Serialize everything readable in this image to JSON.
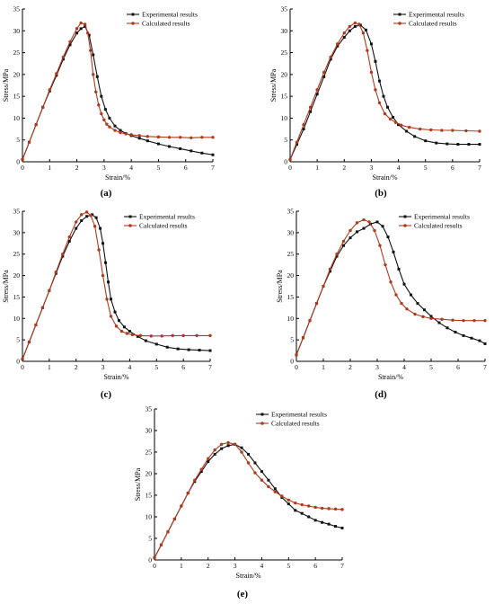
{
  "colors": {
    "experimental": "#111111",
    "calculated": "#b03a1e"
  },
  "chart_data": [
    {
      "type": "line",
      "panel": "(a)",
      "xlabel": "Strain/%",
      "ylabel": "Stress/MPa",
      "xlim": [
        0,
        7
      ],
      "ylim": [
        0,
        35
      ],
      "xticks": [
        0,
        1,
        2,
        3,
        4,
        5,
        6,
        7
      ],
      "yticks": [
        0,
        5,
        10,
        15,
        20,
        25,
        30,
        35
      ],
      "legend": "top-right",
      "series": [
        {
          "name": "Experimental  results",
          "x": [
            0,
            0.25,
            0.5,
            0.75,
            1.0,
            1.25,
            1.5,
            1.75,
            2.0,
            2.15,
            2.3,
            2.45,
            2.6,
            2.75,
            2.9,
            3.05,
            3.2,
            3.4,
            3.6,
            3.8,
            4.0,
            4.3,
            4.6,
            5.0,
            5.4,
            5.8,
            6.2,
            6.6,
            7.0
          ],
          "y": [
            0.5,
            4.5,
            8.5,
            12.5,
            16.2,
            19.8,
            23.5,
            26.8,
            29.5,
            30.5,
            31.0,
            29.0,
            24.5,
            19.5,
            15.0,
            12.0,
            10.0,
            8.2,
            7.2,
            6.5,
            6.0,
            5.4,
            4.8,
            4.1,
            3.5,
            3.0,
            2.5,
            2.0,
            1.6
          ]
        },
        {
          "name": "Calculated results",
          "x": [
            0,
            0.25,
            0.5,
            0.75,
            1.0,
            1.25,
            1.5,
            1.75,
            2.0,
            2.15,
            2.3,
            2.4,
            2.5,
            2.6,
            2.7,
            2.8,
            2.9,
            3.0,
            3.1,
            3.2,
            3.4,
            3.6,
            3.8,
            4.0,
            4.3,
            4.6,
            5.0,
            5.4,
            5.8,
            6.2,
            6.6,
            7.0
          ],
          "y": [
            0.5,
            4.5,
            8.5,
            12.5,
            16.5,
            20.2,
            24.0,
            27.5,
            30.5,
            31.8,
            31.5,
            29.5,
            25.5,
            20.0,
            16.0,
            13.0,
            11.0,
            9.6,
            8.6,
            8.0,
            7.2,
            6.7,
            6.4,
            6.2,
            6.0,
            5.8,
            5.7,
            5.6,
            5.6,
            5.5,
            5.6,
            5.6
          ]
        }
      ]
    },
    {
      "type": "line",
      "panel": "(b)",
      "xlabel": "Strain/%",
      "ylabel": "Stress/MPa",
      "xlim": [
        0,
        7
      ],
      "ylim": [
        0,
        35
      ],
      "xticks": [
        0,
        1,
        2,
        3,
        4,
        5,
        6,
        7
      ],
      "yticks": [
        0,
        5,
        10,
        15,
        20,
        25,
        30,
        35
      ],
      "legend": "top-right",
      "series": [
        {
          "name": "Experimental  results",
          "x": [
            0,
            0.25,
            0.5,
            0.75,
            1.0,
            1.25,
            1.5,
            1.75,
            2.0,
            2.2,
            2.4,
            2.6,
            2.8,
            3.0,
            3.15,
            3.3,
            3.45,
            3.6,
            3.8,
            4.0,
            4.3,
            4.6,
            5.0,
            5.4,
            5.8,
            6.2,
            6.6,
            7.0
          ],
          "y": [
            0.5,
            4.0,
            7.5,
            11.5,
            15.5,
            19.5,
            23.5,
            26.5,
            28.5,
            30.0,
            31.0,
            31.3,
            30.2,
            27.0,
            23.0,
            18.5,
            15.0,
            12.5,
            10.2,
            8.5,
            7.0,
            5.8,
            4.8,
            4.3,
            4.1,
            4.0,
            4.0,
            4.0
          ]
        },
        {
          "name": "Calculated results",
          "x": [
            0,
            0.25,
            0.5,
            0.75,
            1.0,
            1.25,
            1.5,
            1.75,
            2.0,
            2.2,
            2.4,
            2.55,
            2.7,
            2.85,
            3.0,
            3.15,
            3.3,
            3.5,
            3.7,
            3.9,
            4.1,
            4.4,
            4.8,
            5.2,
            5.6,
            6.0,
            6.5,
            7.0
          ],
          "y": [
            0.5,
            4.5,
            8.5,
            12.5,
            16.5,
            20.5,
            24.0,
            27.0,
            29.5,
            31.0,
            31.8,
            31.5,
            29.5,
            25.5,
            20.5,
            16.5,
            13.5,
            11.0,
            9.8,
            9.0,
            8.4,
            7.9,
            7.5,
            7.3,
            7.2,
            7.2,
            7.1,
            7.0
          ]
        }
      ]
    },
    {
      "type": "line",
      "panel": "(c)",
      "xlabel": "Strain/%",
      "ylabel": "Stress/MPa",
      "xlim": [
        0,
        7
      ],
      "ylim": [
        0,
        35
      ],
      "xticks": [
        0,
        1,
        2,
        3,
        4,
        5,
        6,
        7
      ],
      "yticks": [
        0,
        5,
        10,
        15,
        20,
        25,
        30,
        35
      ],
      "legend": "top-right",
      "series": [
        {
          "name": "Experimental  results",
          "x": [
            0,
            0.25,
            0.5,
            0.75,
            1.0,
            1.25,
            1.5,
            1.75,
            2.0,
            2.2,
            2.4,
            2.6,
            2.75,
            2.9,
            3.0,
            3.1,
            3.2,
            3.3,
            3.45,
            3.6,
            3.8,
            4.0,
            4.3,
            4.6,
            5.0,
            5.4,
            5.8,
            6.2,
            6.6,
            7.0
          ],
          "y": [
            0.5,
            4.5,
            8.5,
            12.5,
            16.5,
            20.5,
            24.5,
            28.0,
            31.0,
            32.8,
            33.8,
            34.2,
            33.5,
            31.0,
            27.5,
            23.0,
            18.5,
            14.5,
            11.5,
            9.5,
            8.0,
            7.0,
            5.8,
            4.8,
            4.0,
            3.3,
            2.9,
            2.7,
            2.6,
            2.5
          ]
        },
        {
          "name": "Calculated results",
          "x": [
            0,
            0.25,
            0.5,
            0.75,
            1.0,
            1.25,
            1.5,
            1.75,
            2.0,
            2.2,
            2.4,
            2.55,
            2.7,
            2.85,
            3.0,
            3.15,
            3.3,
            3.5,
            3.7,
            3.9,
            4.1,
            4.4,
            4.8,
            5.2,
            5.6,
            6.0,
            6.5,
            7.0
          ],
          "y": [
            0.5,
            4.5,
            8.5,
            12.5,
            16.5,
            20.8,
            25.0,
            29.0,
            32.5,
            34.2,
            34.8,
            34.0,
            31.5,
            26.0,
            20.0,
            14.5,
            10.5,
            8.2,
            7.0,
            6.5,
            6.2,
            6.0,
            5.9,
            5.9,
            6.0,
            6.0,
            6.0,
            6.0
          ]
        }
      ]
    },
    {
      "type": "line",
      "panel": "(d)",
      "xlabel": "Strain/%",
      "ylabel": "Stress/MPa",
      "xlim": [
        0,
        7
      ],
      "ylim": [
        0,
        35
      ],
      "xticks": [
        0,
        1,
        2,
        3,
        4,
        5,
        6,
        7
      ],
      "yticks": [
        0,
        5,
        10,
        15,
        20,
        25,
        30,
        35
      ],
      "legend": "top-right",
      "series": [
        {
          "name": "Experimental  results",
          "x": [
            0,
            0.25,
            0.5,
            0.75,
            1.0,
            1.25,
            1.5,
            1.75,
            2.0,
            2.25,
            2.5,
            2.75,
            3.0,
            3.2,
            3.4,
            3.6,
            3.8,
            4.0,
            4.25,
            4.5,
            4.75,
            5.0,
            5.3,
            5.6,
            5.9,
            6.2,
            6.5,
            6.8,
            7.0
          ],
          "y": [
            1.5,
            5.5,
            9.5,
            13.5,
            17.5,
            21.0,
            24.5,
            27.0,
            28.8,
            30.2,
            31.0,
            32.0,
            32.5,
            31.5,
            29.0,
            25.5,
            21.5,
            18.0,
            15.5,
            13.5,
            12.0,
            10.5,
            9.0,
            7.8,
            6.8,
            6.0,
            5.4,
            4.8,
            4.1
          ]
        },
        {
          "name": "Calculated results",
          "x": [
            0,
            0.25,
            0.5,
            0.75,
            1.0,
            1.25,
            1.5,
            1.75,
            2.0,
            2.25,
            2.5,
            2.7,
            2.9,
            3.1,
            3.3,
            3.5,
            3.7,
            3.9,
            4.1,
            4.4,
            4.7,
            5.0,
            5.4,
            5.8,
            6.2,
            6.6,
            7.0
          ],
          "y": [
            1.5,
            5.5,
            9.5,
            13.5,
            17.5,
            21.5,
            25.0,
            28.0,
            30.5,
            32.3,
            33.0,
            32.5,
            30.5,
            27.0,
            22.5,
            18.5,
            15.5,
            13.5,
            12.2,
            11.0,
            10.4,
            10.0,
            9.8,
            9.6,
            9.5,
            9.5,
            9.5
          ]
        }
      ]
    },
    {
      "type": "line",
      "panel": "(e)",
      "xlabel": "Strain/%",
      "ylabel": "Stress/MPa",
      "xlim": [
        0,
        7
      ],
      "ylim": [
        0,
        35
      ],
      "xticks": [
        0,
        1,
        2,
        3,
        4,
        5,
        6,
        7
      ],
      "yticks": [
        0,
        5,
        10,
        15,
        20,
        25,
        30,
        35
      ],
      "legend": "top-right",
      "series": [
        {
          "name": "Experimental  results",
          "x": [
            0,
            0.25,
            0.5,
            0.75,
            1.0,
            1.25,
            1.5,
            1.75,
            2.0,
            2.25,
            2.5,
            2.75,
            3.0,
            3.25,
            3.5,
            3.75,
            4.0,
            4.25,
            4.5,
            4.75,
            5.0,
            5.25,
            5.5,
            5.75,
            6.0,
            6.25,
            6.5,
            6.75,
            7.0
          ],
          "y": [
            0.5,
            3.5,
            6.5,
            9.5,
            12.5,
            15.5,
            18.2,
            20.5,
            22.8,
            24.5,
            25.8,
            26.5,
            26.8,
            26.0,
            24.5,
            22.5,
            20.5,
            18.5,
            16.5,
            14.5,
            13.0,
            11.5,
            10.8,
            10.0,
            9.2,
            8.7,
            8.3,
            7.8,
            7.4
          ]
        },
        {
          "name": "Calculated results",
          "x": [
            0,
            0.25,
            0.5,
            0.75,
            1.0,
            1.25,
            1.5,
            1.75,
            2.0,
            2.25,
            2.5,
            2.75,
            3.0,
            3.25,
            3.5,
            3.75,
            4.0,
            4.25,
            4.5,
            4.75,
            5.0,
            5.25,
            5.5,
            5.75,
            6.0,
            6.25,
            6.5,
            6.75,
            7.0
          ],
          "y": [
            0.5,
            3.5,
            6.5,
            9.5,
            12.5,
            15.5,
            18.5,
            21.0,
            23.5,
            25.5,
            26.8,
            27.2,
            26.8,
            25.0,
            22.5,
            20.2,
            18.5,
            17.0,
            15.8,
            14.8,
            13.9,
            13.2,
            12.8,
            12.5,
            12.2,
            12.0,
            11.9,
            11.8,
            11.7
          ]
        }
      ]
    }
  ]
}
